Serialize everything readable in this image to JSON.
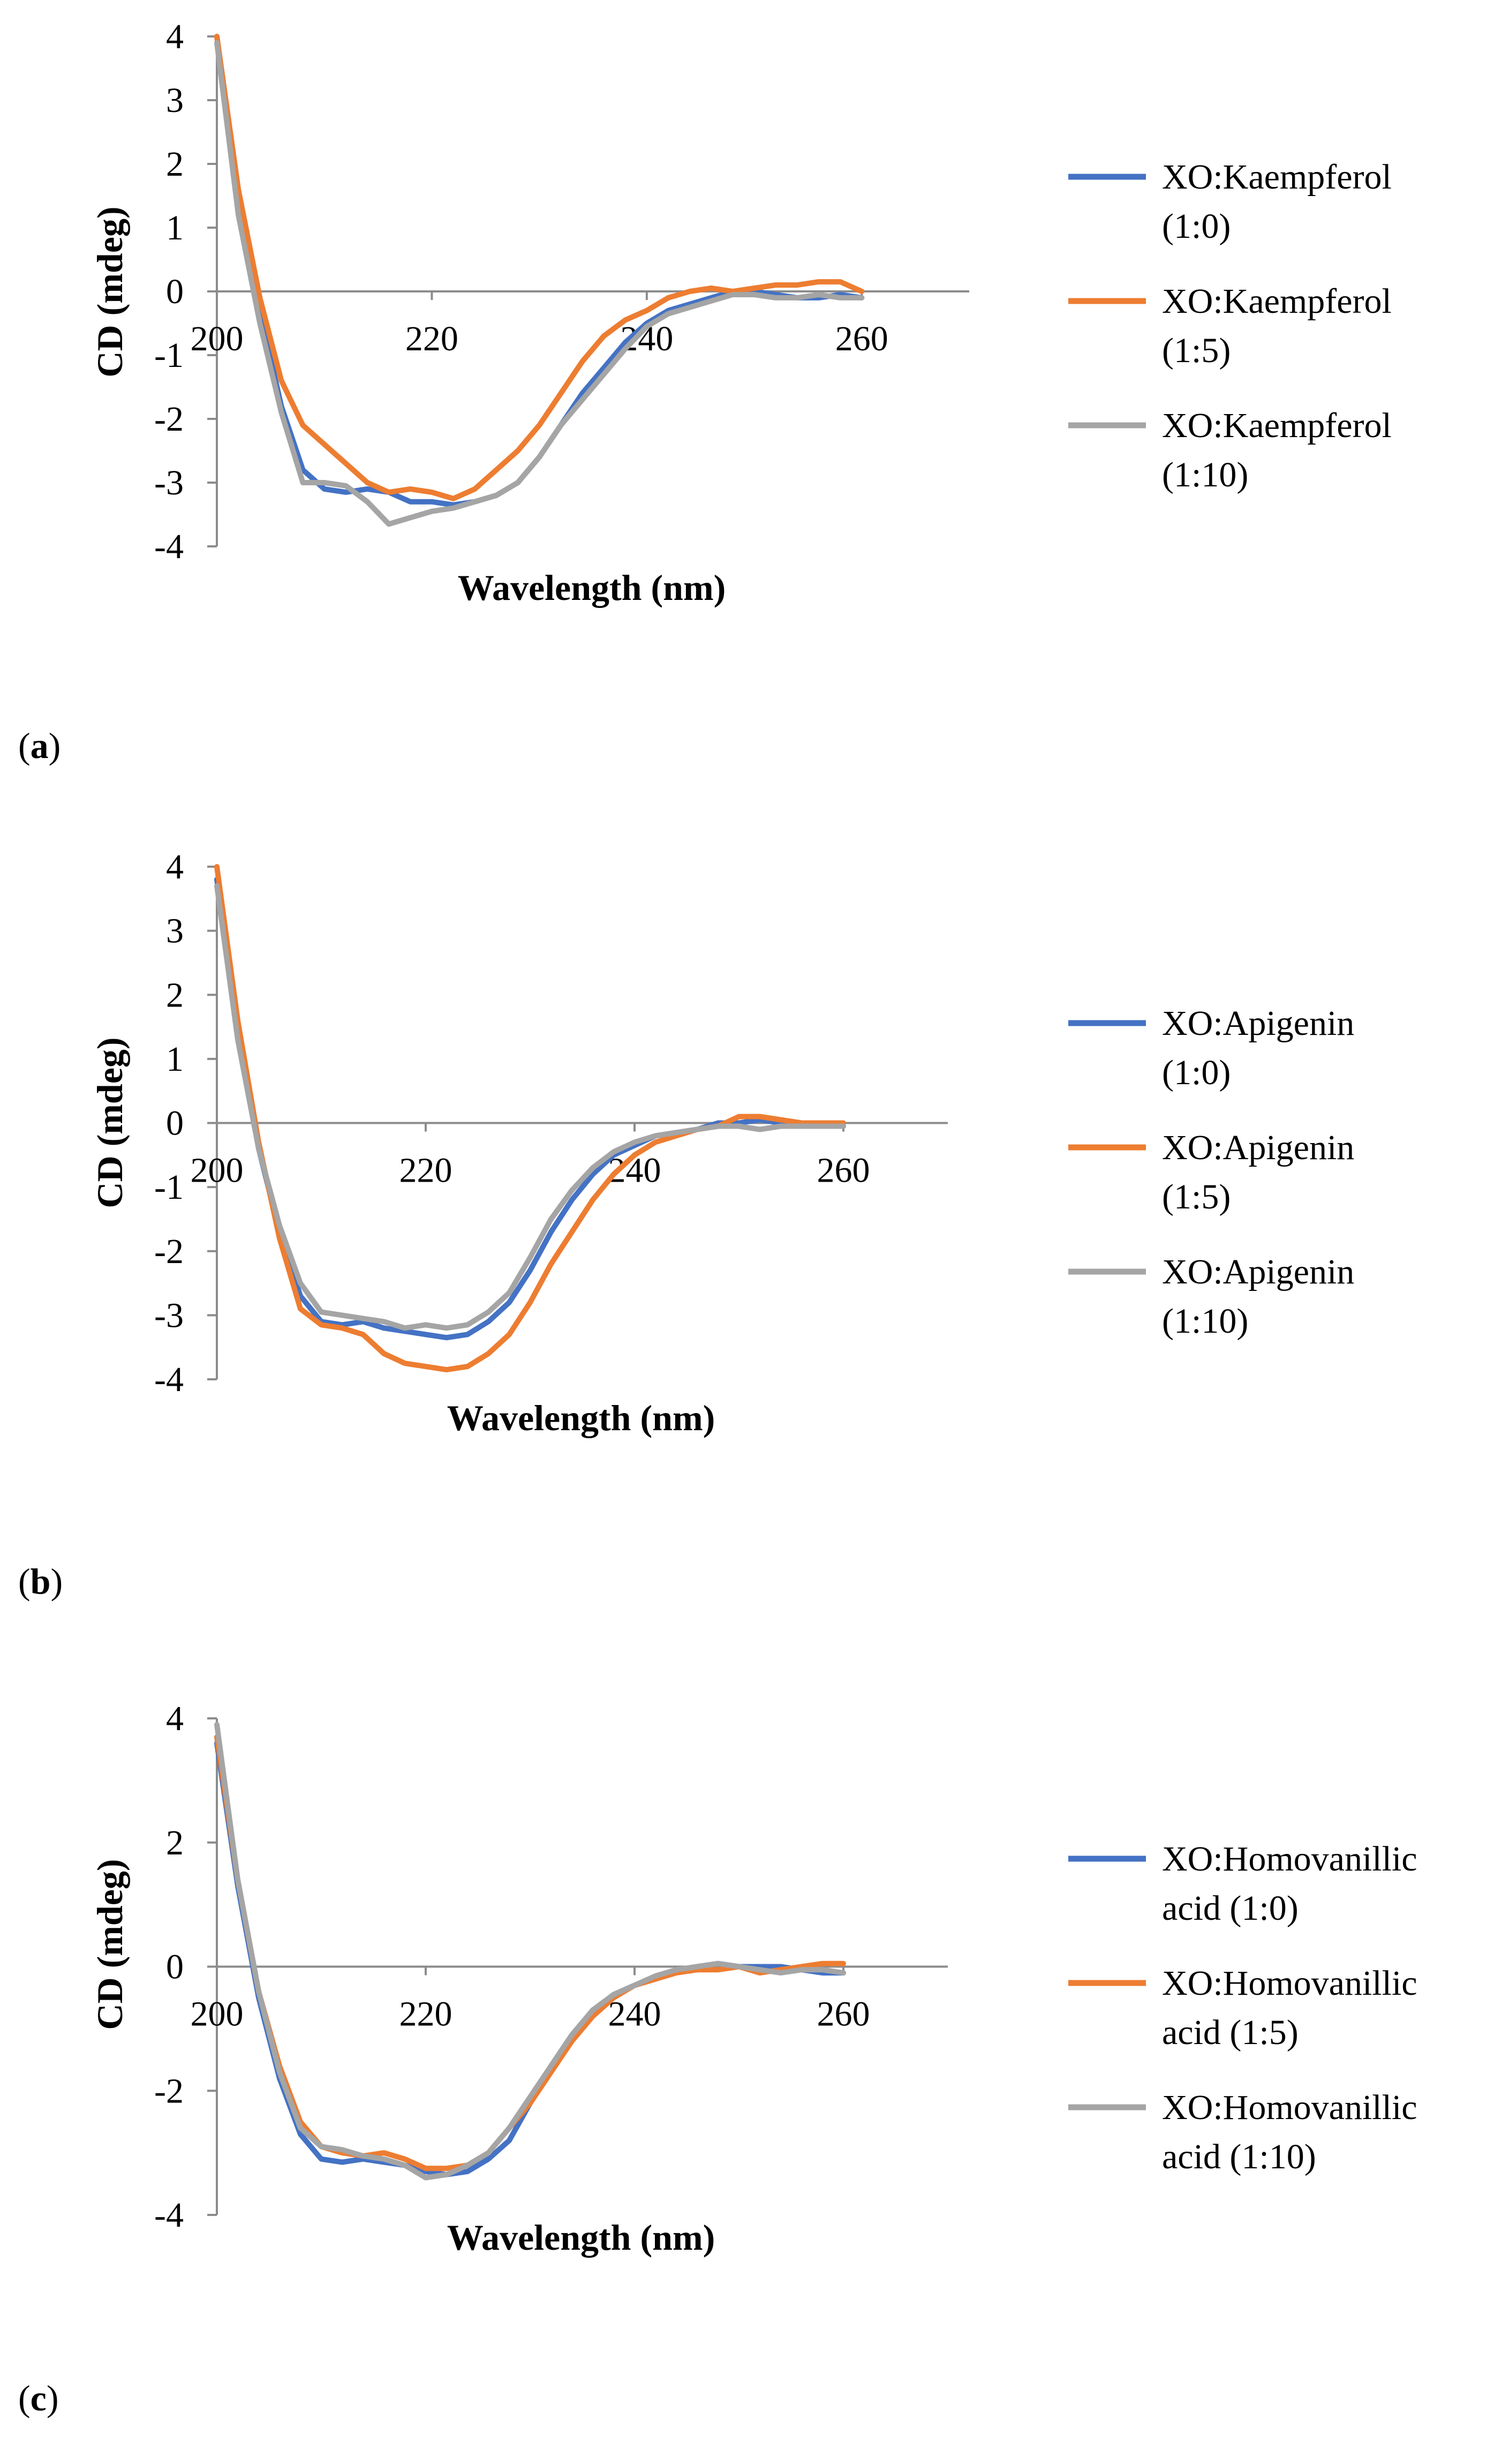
{
  "colors": {
    "s0": "#4472C4",
    "s1": "#ED7D31",
    "s2": "#A5A5A5"
  },
  "chart_data": [
    {
      "type": "line",
      "panel_label": "a",
      "xlabel": "Wavelength (nm)",
      "ylabel": "CD (mdeg)",
      "xlim": [
        200,
        270
      ],
      "ylim": [
        -4,
        4
      ],
      "xticks": [
        200,
        220,
        240,
        260
      ],
      "xtick_labels": [
        "200",
        "220",
        "240",
        "260"
      ],
      "yticks": [
        4,
        3,
        2,
        1,
        0,
        -1,
        -2,
        -3,
        -4
      ],
      "ytick_labels": [
        "4",
        "3",
        "2",
        "1",
        "0",
        "-1",
        "-2",
        "-3",
        "-4"
      ],
      "legend_position": "right",
      "series": [
        {
          "name": "XO:Kaempferol (1:0)",
          "legend_lines": [
            "XO:Kaempferol",
            "(1:0)"
          ],
          "x": [
            200,
            202,
            204,
            206,
            208,
            210,
            212,
            214,
            216,
            218,
            220,
            222,
            224,
            226,
            228,
            230,
            232,
            234,
            236,
            238,
            240,
            242,
            244,
            246,
            248,
            250,
            252,
            254,
            256,
            258,
            260
          ],
          "y": [
            4,
            1.5,
            -0.3,
            -1.8,
            -2.8,
            -3.1,
            -3.15,
            -3.1,
            -3.15,
            -3.3,
            -3.3,
            -3.35,
            -3.3,
            -3.2,
            -3.0,
            -2.6,
            -2.1,
            -1.6,
            -1.2,
            -0.8,
            -0.5,
            -0.3,
            -0.2,
            -0.1,
            0,
            0,
            -0.05,
            -0.1,
            -0.1,
            -0.05,
            -0.1
          ]
        },
        {
          "name": "XO:Kaempferol (1:5)",
          "legend_lines": [
            "XO:Kaempferol",
            "(1:5)"
          ],
          "x": [
            200,
            202,
            204,
            206,
            208,
            210,
            212,
            214,
            216,
            218,
            220,
            222,
            224,
            226,
            228,
            230,
            232,
            234,
            236,
            238,
            240,
            242,
            244,
            246,
            248,
            250,
            252,
            254,
            256,
            258,
            260
          ],
          "y": [
            4,
            1.6,
            -0.1,
            -1.4,
            -2.1,
            -2.4,
            -2.7,
            -3.0,
            -3.15,
            -3.1,
            -3.15,
            -3.25,
            -3.1,
            -2.8,
            -2.5,
            -2.1,
            -1.6,
            -1.1,
            -0.7,
            -0.45,
            -0.3,
            -0.1,
            0,
            0.05,
            0,
            0.05,
            0.1,
            0.1,
            0.15,
            0.15,
            0
          ]
        },
        {
          "name": "XO:Kaempferol (1:10)",
          "legend_lines": [
            "XO:Kaempferol",
            "(1:10)"
          ],
          "x": [
            200,
            202,
            204,
            206,
            208,
            210,
            212,
            214,
            216,
            218,
            220,
            222,
            224,
            226,
            228,
            230,
            232,
            234,
            236,
            238,
            240,
            242,
            244,
            246,
            248,
            250,
            252,
            254,
            256,
            258,
            260
          ],
          "y": [
            3.9,
            1.2,
            -0.5,
            -1.9,
            -3.0,
            -3.0,
            -3.05,
            -3.3,
            -3.65,
            -3.55,
            -3.45,
            -3.4,
            -3.3,
            -3.2,
            -3.0,
            -2.6,
            -2.1,
            -1.7,
            -1.3,
            -0.9,
            -0.55,
            -0.35,
            -0.25,
            -0.15,
            -0.05,
            -0.05,
            -0.1,
            -0.1,
            -0.05,
            -0.1,
            -0.1
          ]
        }
      ]
    },
    {
      "type": "line",
      "panel_label": "b",
      "xlabel": "Wavelength (nm)",
      "ylabel": "CD (mdeg)",
      "xlim": [
        200,
        270
      ],
      "ylim": [
        -4,
        4
      ],
      "xticks": [
        200,
        220,
        240,
        260
      ],
      "xtick_labels": [
        "200",
        "220",
        "240",
        "260"
      ],
      "yticks": [
        4,
        3,
        2,
        1,
        0,
        -1,
        -2,
        -3,
        -4
      ],
      "ytick_labels": [
        "4",
        "3",
        "2",
        "1",
        "0",
        "-1",
        "-2",
        "-3",
        "-4"
      ],
      "legend_position": "right",
      "series": [
        {
          "name": "XO:Apigenin (1:0)",
          "legend_lines": [
            "XO:Apigenin",
            "(1:0)"
          ],
          "x": [
            200,
            202,
            204,
            206,
            208,
            210,
            212,
            214,
            216,
            218,
            220,
            222,
            224,
            226,
            228,
            230,
            232,
            234,
            236,
            238,
            240,
            242,
            244,
            246,
            248,
            250,
            252,
            254,
            256,
            258,
            260
          ],
          "y": [
            3.8,
            1.5,
            -0.4,
            -1.7,
            -2.7,
            -3.1,
            -3.15,
            -3.1,
            -3.2,
            -3.25,
            -3.3,
            -3.35,
            -3.3,
            -3.1,
            -2.8,
            -2.3,
            -1.7,
            -1.2,
            -0.8,
            -0.5,
            -0.35,
            -0.2,
            -0.15,
            -0.1,
            0,
            0,
            0.05,
            0,
            0,
            0,
            -0.05
          ]
        },
        {
          "name": "XO:Apigenin (1:5)",
          "legend_lines": [
            "XO:Apigenin",
            "(1:5)"
          ],
          "x": [
            200,
            202,
            204,
            206,
            208,
            210,
            212,
            214,
            216,
            218,
            220,
            222,
            224,
            226,
            228,
            230,
            232,
            234,
            236,
            238,
            240,
            242,
            244,
            246,
            248,
            250,
            252,
            254,
            256,
            258,
            260
          ],
          "y": [
            4,
            1.6,
            -0.3,
            -1.8,
            -2.9,
            -3.15,
            -3.2,
            -3.3,
            -3.6,
            -3.75,
            -3.8,
            -3.85,
            -3.8,
            -3.6,
            -3.3,
            -2.8,
            -2.2,
            -1.7,
            -1.2,
            -0.8,
            -0.5,
            -0.3,
            -0.2,
            -0.1,
            -0.05,
            0.1,
            0.1,
            0.05,
            0,
            0,
            0
          ]
        },
        {
          "name": "XO:Apigenin (1:10)",
          "legend_lines": [
            "XO:Apigenin",
            "(1:10)"
          ],
          "x": [
            200,
            202,
            204,
            206,
            208,
            210,
            212,
            214,
            216,
            218,
            220,
            222,
            224,
            226,
            228,
            230,
            232,
            234,
            236,
            238,
            240,
            242,
            244,
            246,
            248,
            250,
            252,
            254,
            256,
            258,
            260
          ],
          "y": [
            3.7,
            1.3,
            -0.4,
            -1.6,
            -2.5,
            -2.95,
            -3.0,
            -3.05,
            -3.1,
            -3.2,
            -3.15,
            -3.2,
            -3.15,
            -2.95,
            -2.65,
            -2.1,
            -1.5,
            -1.05,
            -0.7,
            -0.45,
            -0.3,
            -0.2,
            -0.15,
            -0.1,
            -0.05,
            -0.05,
            -0.1,
            -0.05,
            -0.05,
            -0.05,
            -0.05
          ]
        }
      ]
    },
    {
      "type": "line",
      "panel_label": "c",
      "xlabel": "Wavelength (nm)",
      "ylabel": "CD (mdeg)",
      "xlim": [
        200,
        270
      ],
      "ylim": [
        -4,
        4
      ],
      "xticks": [
        200,
        220,
        240,
        260
      ],
      "xtick_labels": [
        "200",
        "220",
        "240",
        "260"
      ],
      "yticks": [
        4,
        2,
        0,
        -2,
        -4
      ],
      "ytick_labels": [
        "4",
        "2",
        "0",
        "-2",
        "-4"
      ],
      "legend_position": "right",
      "series": [
        {
          "name": "XO:Homovanillic acid (1:0)",
          "legend_lines": [
            "XO:Homovanillic",
            "acid (1:0)"
          ],
          "x": [
            200,
            202,
            204,
            206,
            208,
            210,
            212,
            214,
            216,
            218,
            220,
            222,
            224,
            226,
            228,
            230,
            232,
            234,
            236,
            238,
            240,
            242,
            244,
            246,
            248,
            250,
            252,
            254,
            256,
            258,
            260
          ],
          "y": [
            3.6,
            1.3,
            -0.5,
            -1.8,
            -2.7,
            -3.1,
            -3.15,
            -3.1,
            -3.15,
            -3.2,
            -3.3,
            -3.35,
            -3.3,
            -3.1,
            -2.8,
            -2.2,
            -1.6,
            -1.1,
            -0.7,
            -0.45,
            -0.3,
            -0.2,
            -0.05,
            0,
            0.05,
            0,
            0,
            0,
            -0.05,
            -0.1,
            -0.1
          ]
        },
        {
          "name": "XO:Homovanillic acid (1:5)",
          "legend_lines": [
            "XO:Homovanillic",
            "acid (1:5)"
          ],
          "x": [
            200,
            202,
            204,
            206,
            208,
            210,
            212,
            214,
            216,
            218,
            220,
            222,
            224,
            226,
            228,
            230,
            232,
            234,
            236,
            238,
            240,
            242,
            244,
            246,
            248,
            250,
            252,
            254,
            256,
            258,
            260
          ],
          "y": [
            3.7,
            1.4,
            -0.4,
            -1.6,
            -2.5,
            -2.9,
            -3.0,
            -3.05,
            -3.0,
            -3.1,
            -3.25,
            -3.25,
            -3.2,
            -3.0,
            -2.6,
            -2.2,
            -1.7,
            -1.2,
            -0.8,
            -0.5,
            -0.3,
            -0.2,
            -0.1,
            -0.05,
            -0.05,
            0,
            -0.1,
            -0.05,
            0,
            0.05,
            0.05
          ]
        },
        {
          "name": "XO:Homovanillic acid (1:10)",
          "legend_lines": [
            "XO:Homovanillic",
            "acid (1:10)"
          ],
          "x": [
            200,
            202,
            204,
            206,
            208,
            210,
            212,
            214,
            216,
            218,
            220,
            222,
            224,
            226,
            228,
            230,
            232,
            234,
            236,
            238,
            240,
            242,
            244,
            246,
            248,
            250,
            252,
            254,
            256,
            258,
            260
          ],
          "y": [
            3.9,
            1.4,
            -0.4,
            -1.7,
            -2.6,
            -2.9,
            -2.95,
            -3.05,
            -3.1,
            -3.2,
            -3.4,
            -3.35,
            -3.2,
            -3.0,
            -2.6,
            -2.1,
            -1.6,
            -1.1,
            -0.7,
            -0.45,
            -0.3,
            -0.15,
            -0.05,
            0,
            0.05,
            0,
            -0.05,
            -0.1,
            -0.05,
            -0.05,
            -0.1
          ]
        }
      ]
    }
  ]
}
